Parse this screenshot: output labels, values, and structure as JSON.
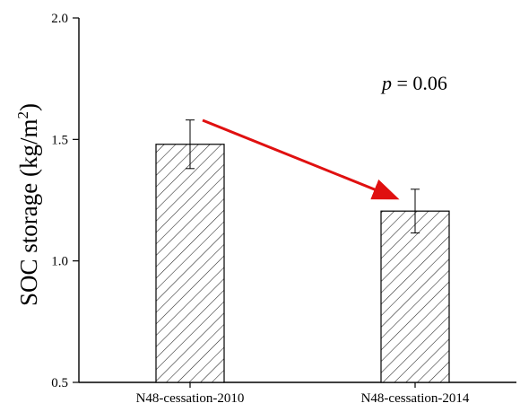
{
  "chart_data": {
    "type": "bar",
    "categories": [
      "N48-cessation-2010",
      "N48-cessation-2014"
    ],
    "values": [
      1.48,
      1.205
    ],
    "errors": [
      0.1,
      0.09
    ],
    "ylabel_main": "SOC storage (kg/m",
    "ylabel_sup": "2",
    "ylabel_close": ")",
    "xlabel": "",
    "title": "",
    "ylim": [
      0.5,
      2.0
    ],
    "yticks": [
      "0.5",
      "1.0",
      "1.5",
      "2.0"
    ],
    "ytick_values": [
      0.5,
      1.0,
      1.5,
      2.0
    ],
    "bar_pattern": "diagonal-hatch",
    "annotation": {
      "p_symbol": "p",
      "p_rest": " = 0.06"
    },
    "arrow_color": "#e01010"
  }
}
